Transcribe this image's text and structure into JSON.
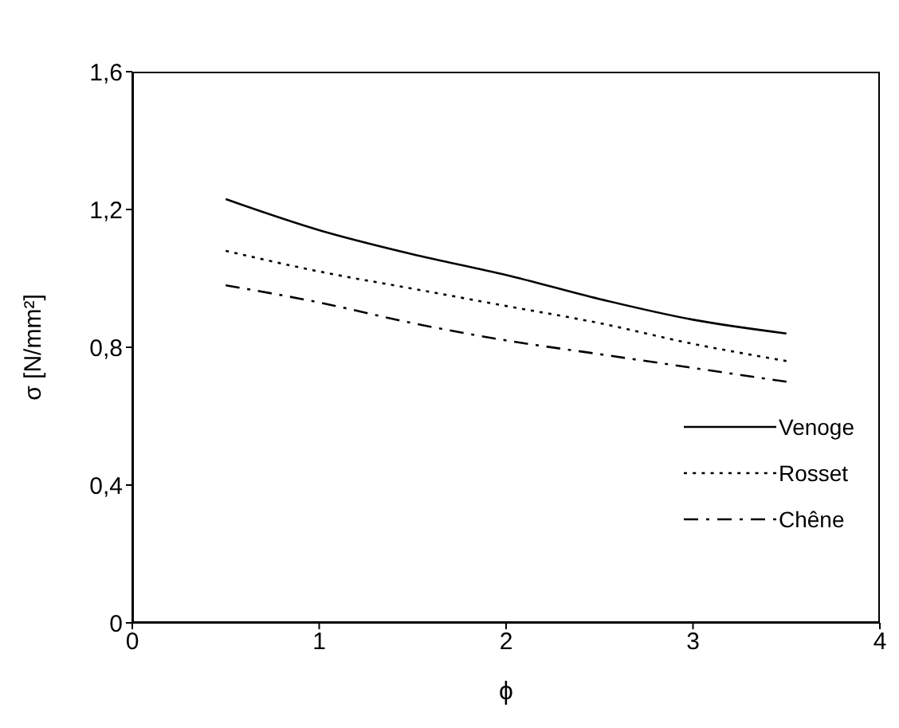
{
  "chart_data": {
    "type": "line",
    "xlabel": "ϕ",
    "ylabel": "σ [N/mm²]",
    "x": [
      0.5,
      1,
      1.5,
      2,
      2.5,
      3,
      3.5
    ],
    "series": [
      {
        "name": "Venoge",
        "color": "#000000",
        "line_style": "solid",
        "values": [
          1.23,
          1.14,
          1.07,
          1.01,
          0.94,
          0.88,
          0.84
        ]
      },
      {
        "name": "Rosset",
        "color": "#000000",
        "line_style": "dotted",
        "values": [
          1.08,
          1.02,
          0.97,
          0.92,
          0.87,
          0.81,
          0.76
        ]
      },
      {
        "name": "Chêne",
        "color": "#000000",
        "line_style": "dashed",
        "values": [
          0.98,
          0.93,
          0.87,
          0.82,
          0.78,
          0.74,
          0.7
        ]
      }
    ],
    "xlim": [
      0,
      4
    ],
    "xticks": [
      0,
      1,
      2,
      3,
      4
    ],
    "ylim": [
      0,
      1.6
    ],
    "yticks": [
      0,
      {
        "value": 0.4,
        "label": "0,4"
      },
      {
        "value": 0.8,
        "label": "0,8"
      },
      {
        "value": 1.2,
        "label": "1,2"
      },
      {
        "value": 1.6,
        "label": "1,6"
      }
    ],
    "grid": false,
    "legend": "bottom right",
    "marker": "none"
  }
}
